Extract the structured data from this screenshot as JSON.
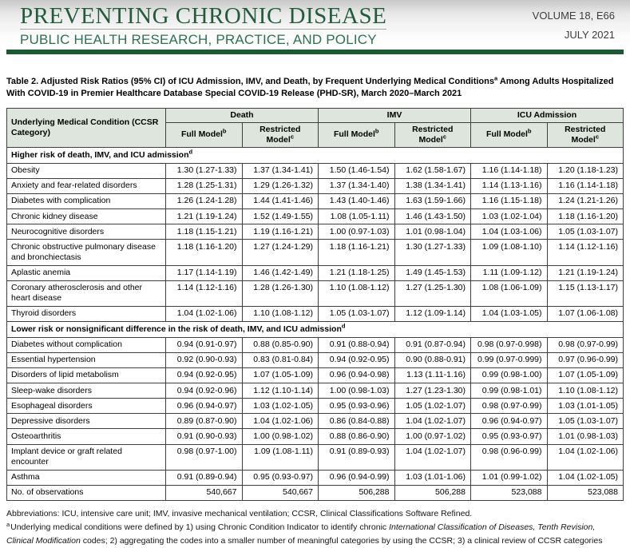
{
  "masthead": {
    "title": "PREVENTING CHRONIC DISEASE",
    "subtitle": "PUBLIC HEALTH RESEARCH, PRACTICE, AND POLICY",
    "volume": "VOLUME 18, E66",
    "issue_date": "JULY 2021",
    "accent_color": "#1d5a34",
    "title_color": "#235c3d"
  },
  "table": {
    "title": {
      "pre": "Table 2. Adjusted Risk Ratios (95% CI) of ICU Admission, IMV, and Death, by Frequent Underlying Medical Conditions",
      "sup": "a",
      "post": " Among Adults Hospitalized With COVID-19 in Premier Healthcare Database Special COVID-19 Release (PHD-SR), March 2020–March 2021"
    },
    "first_column_header": "Underlying Medical Condition (CCSR Category)",
    "groups": [
      {
        "label": "Death"
      },
      {
        "label": "IMV"
      },
      {
        "label": "ICU Admission"
      }
    ],
    "subcolumns": {
      "full": {
        "label": "Full Model",
        "sup": "b"
      },
      "restricted": {
        "label": "Restricted Model",
        "sup": "c"
      }
    },
    "sections": [
      {
        "header": "Higher risk of death, IMV, and ICU admission",
        "sup": "d",
        "rows": [
          {
            "label": "Obesity",
            "values": [
              "1.30 (1.27-1.33)",
              "1.37 (1.34-1.41)",
              "1.50 (1.46-1.54)",
              "1.62 (1.58-1.67)",
              "1.16 (1.14-1.18)",
              "1.20 (1.18-1.23)"
            ]
          },
          {
            "label": "Anxiety and fear-related disorders",
            "values": [
              "1.28 (1.25-1.31)",
              "1.29 (1.26-1.32)",
              "1.37 (1.34-1.40)",
              "1.38 (1.34-1.41)",
              "1.14 (1.13-1.16)",
              "1.16 (1.14-1.18)"
            ]
          },
          {
            "label": "Diabetes with complication",
            "values": [
              "1.26 (1.24-1.28)",
              "1.44 (1.41-1.46)",
              "1.43 (1.40-1.46)",
              "1.63 (1.59-1.66)",
              "1.16 (1.15-1.18)",
              "1.24 (1.21-1.26)"
            ]
          },
          {
            "label": "Chronic kidney disease",
            "values": [
              "1.21 (1.19-1.24)",
              "1.52 (1.49-1.55)",
              "1.08 (1.05-1.11)",
              "1.46 (1.43-1.50)",
              "1.03 (1.02-1.04)",
              "1.18 (1.16-1.20)"
            ]
          },
          {
            "label": "Neurocognitive disorders",
            "values": [
              "1.18 (1.15-1.21)",
              "1.19 (1.16-1.21)",
              "1.00 (0.97-1.03)",
              "1.01 (0.98-1.04)",
              "1.04 (1.03-1.06)",
              "1.05 (1.03-1.07)"
            ]
          },
          {
            "label": "Chronic obstructive pulmonary disease and bronchiectasis",
            "values": [
              "1.18 (1.16-1.20)",
              "1.27 (1.24-1.29)",
              "1.18 (1.16-1.21)",
              "1.30 (1.27-1.33)",
              "1.09 (1.08-1.10)",
              "1.14 (1.12-1.16)"
            ]
          },
          {
            "label": "Aplastic anemia",
            "values": [
              "1.17 (1.14-1.19)",
              "1.46 (1.42-1.49)",
              "1.21 (1.18-1.25)",
              "1.49 (1.45-1.53)",
              "1.11 (1.09-1.12)",
              "1.21 (1.19-1.24)"
            ]
          },
          {
            "label": "Coronary atherosclerosis and other heart disease",
            "values": [
              "1.14 (1.12-1.16)",
              "1.28 (1.26-1.30)",
              "1.10 (1.08-1.12)",
              "1.27 (1.25-1.30)",
              "1.08 (1.06-1.09)",
              "1.15 (1.13-1.17)"
            ]
          },
          {
            "label": "Thyroid disorders",
            "values": [
              "1.04 (1.02-1.06)",
              "1.10 (1.08-1.12)",
              "1.05 (1.03-1.07)",
              "1.12 (1.09-1.14)",
              "1.04 (1.03-1.05)",
              "1.07 (1.06-1.08)"
            ]
          }
        ]
      },
      {
        "header": "Lower risk or nonsignificant difference in the risk of death, IMV, and ICU admission",
        "sup": "d",
        "rows": [
          {
            "label": "Diabetes without complication",
            "values": [
              "0.94 (0.91-0.97)",
              "0.88 (0.85-0.90)",
              "0.91 (0.88-0.94)",
              "0.91 (0.87-0.94)",
              "0.98 (0.97-0.998)",
              "0.98 (0.97-0.99)"
            ]
          },
          {
            "label": "Essential hypertension",
            "values": [
              "0.92 (0.90-0.93)",
              "0.83 (0.81-0.84)",
              "0.94 (0.92-0.95)",
              "0.90 (0.88-0.91)",
              "0.99 (0.97-0.999)",
              "0.97 (0.96-0.99)"
            ]
          },
          {
            "label": "Disorders of lipid metabolism",
            "values": [
              "0.94 (0.92-0.95)",
              "1.07 (1.05-1.09)",
              "0.96 (0.94-0.98)",
              "1.13 (1.11-1.16)",
              "0.99 (0.98-1.00)",
              "1.07 (1.05-1.09)"
            ]
          },
          {
            "label": "Sleep-wake disorders",
            "values": [
              "0.94 (0.92-0.96)",
              "1.12 (1.10-1.14)",
              "1.00 (0.98-1.03)",
              "1.27 (1.23-1.30)",
              "0.99 (0.98-1.01)",
              "1.10 (1.08-1.12)"
            ]
          },
          {
            "label": "Esophageal disorders",
            "values": [
              "0.96 (0.94-0.97)",
              "1.03 (1.02-1.05)",
              "0.95 (0.93-0.96)",
              "1.05 (1.02-1.07)",
              "0.98 (0.97-0.99)",
              "1.03 (1.01-1.05)"
            ]
          },
          {
            "label": "Depressive disorders",
            "values": [
              "0.89 (0.87-0.90)",
              "1.04 (1.02-1.06)",
              "0.86 (0.84-0.88)",
              "1.04 (1.02-1.07)",
              "0.96 (0.94-0.97)",
              "1.05 (1.03-1.07)"
            ]
          },
          {
            "label": "Osteoarthritis",
            "values": [
              "0.91 (0.90-0.93)",
              "1.00 (0.98-1.02)",
              "0.88 (0.86-0.90)",
              "1.00 (0.97-1.02)",
              "0.95 (0.93-0.97)",
              "1.01 (0.98-1.03)"
            ]
          },
          {
            "label": "Implant device or graft related encounter",
            "values": [
              "0.98 (0.97-1.00)",
              "1.09 (1.08-1.11)",
              "0.91 (0.89-0.93)",
              "1.04 (1.02-1.07)",
              "0.98 (0.96-0.99)",
              "1.04 (1.02-1.06)"
            ]
          },
          {
            "label": "Asthma",
            "values": [
              "0.91 (0.89-0.94)",
              "0.95 (0.93-0.97)",
              "0.96 (0.94-0.99)",
              "1.03 (1.01-1.06)",
              "1.01 (0.99-1.02)",
              "1.04 (1.02-1.05)"
            ]
          }
        ]
      }
    ],
    "observations": {
      "label": "No. of observations",
      "values": [
        "540,667",
        "540,667",
        "506,288",
        "506,288",
        "523,088",
        "523,088"
      ]
    }
  },
  "footnotes": {
    "abbreviations": "Abbreviations: ICU, intensive care unit; IMV, invasive mechanical ventilation; CCSR, Clinical Classifications Software Refined.",
    "a": {
      "sup": "a",
      "pre": "Underlying medical conditions were defined by 1) using Chronic Condition Indicator to identify chronic ",
      "italic": "International Classification of Diseases, Tenth Revision, Clinical Modification",
      "post": " codes; 2) aggregating the codes into a smaller number of meaningful categories by using the CCSR; 3) a clinical review of CCSR categories"
    }
  }
}
